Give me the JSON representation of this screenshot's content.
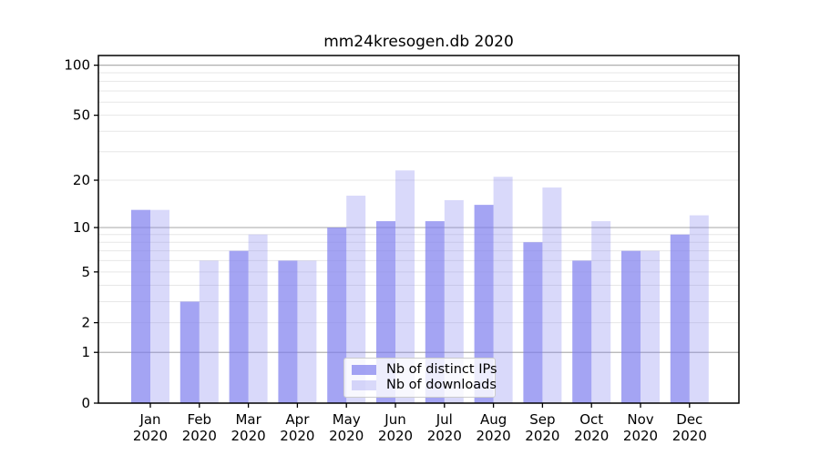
{
  "chart_data": {
    "type": "bar",
    "title": "mm24kresogen.db 2020",
    "x_categories": [
      "Jan",
      "Feb",
      "Mar",
      "Apr",
      "May",
      "Jun",
      "Jul",
      "Aug",
      "Sep",
      "Oct",
      "Nov",
      "Dec"
    ],
    "x_year": "2020",
    "series": [
      {
        "name": "Nb of distinct IPs",
        "color": "#7d7dee",
        "alpha": 0.7,
        "values": [
          13,
          3,
          7,
          6,
          10,
          11,
          11,
          14,
          8,
          6,
          7,
          9
        ]
      },
      {
        "name": "Nb of downloads",
        "color": "#8080ee",
        "alpha": 0.3,
        "values": [
          13,
          6,
          9,
          6,
          16,
          23,
          15,
          21,
          18,
          11,
          7,
          12
        ]
      }
    ],
    "yscale": "log1p",
    "ylim": [
      0,
      114.3
    ],
    "yticks": [
      0,
      1,
      2,
      5,
      10,
      20,
      50,
      100
    ],
    "major_gridlines": [
      1,
      10,
      100
    ],
    "minor_gridlines": [
      2,
      3,
      4,
      5,
      6,
      7,
      8,
      9,
      20,
      30,
      40,
      50,
      60,
      70,
      80,
      90
    ],
    "grid": true,
    "legend_position": "lower center"
  },
  "colors": {
    "grid_major": "#b0b0b0",
    "grid_minor": "#e7e7e7",
    "axis": "#000000",
    "text": "#000000",
    "legend_bg": "rgba(255,255,255,0.8)",
    "legend_border": "#cccccc"
  }
}
